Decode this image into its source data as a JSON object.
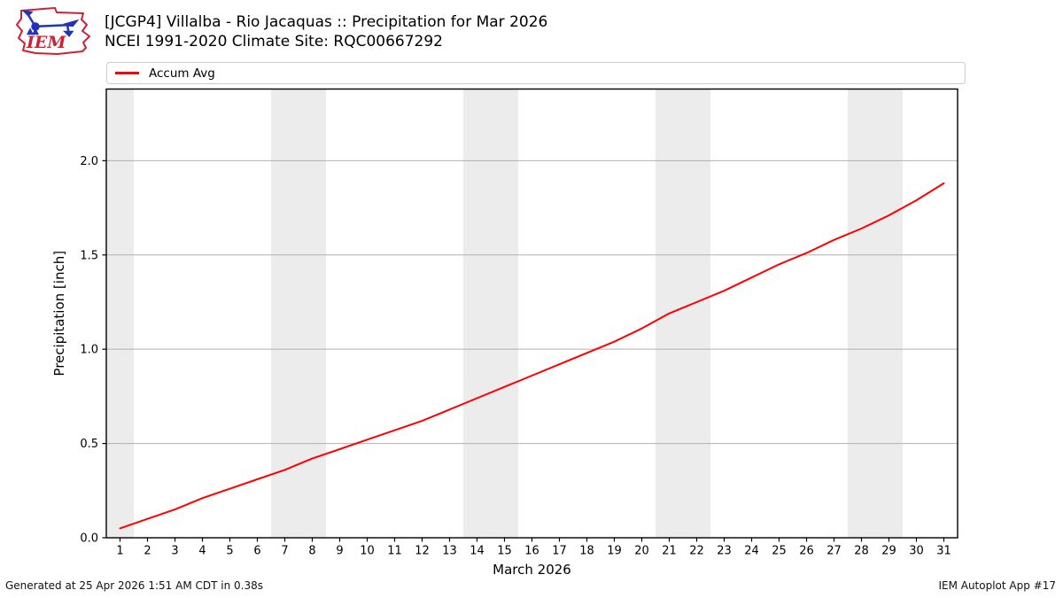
{
  "header": {
    "title_line1": "[JCGP4] Villalba - Rio Jacaquas :: Precipitation for Mar 2026",
    "title_line2": "NCEI 1991-2020 Climate Site: RQC00667292",
    "logo_text": "IEM"
  },
  "legend": {
    "items": [
      {
        "label": "Accum Avg",
        "color": "#ff0000"
      }
    ]
  },
  "footer": {
    "left": "Generated at 25 Apr 2026 1:51 AM CDT in 0.38s",
    "right": "IEM Autoplot App #17"
  },
  "colors": {
    "line": "#ff0000",
    "weekend_band": "#ececec",
    "grid": "#b0b0b0",
    "axis": "#000000",
    "logo_red": "#cc2233",
    "logo_blue": "#2233bb"
  },
  "chart_data": {
    "type": "line",
    "title": "[JCGP4] Villalba - Rio Jacaquas :: Precipitation for Mar 2026",
    "subtitle": "NCEI 1991-2020 Climate Site: RQC00667292",
    "xlabel": "March 2026",
    "ylabel": "Precipitation [inch]",
    "xlim": [
      0.5,
      31.5
    ],
    "ylim": [
      0,
      2.38
    ],
    "grid": "horizontal",
    "legend_position": "top",
    "x_ticks": [
      1,
      2,
      3,
      4,
      5,
      6,
      7,
      8,
      9,
      10,
      11,
      12,
      13,
      14,
      15,
      16,
      17,
      18,
      19,
      20,
      21,
      22,
      23,
      24,
      25,
      26,
      27,
      28,
      29,
      30,
      31
    ],
    "y_ticks": [
      "0.0",
      "0.5",
      "1.0",
      "1.5",
      "2.0"
    ],
    "y_tick_values": [
      0.0,
      0.5,
      1.0,
      1.5,
      2.0
    ],
    "weekend_bands": [
      [
        0.5,
        1.5
      ],
      [
        6.5,
        8.5
      ],
      [
        13.5,
        15.5
      ],
      [
        20.5,
        22.5
      ],
      [
        27.5,
        29.5
      ]
    ],
    "series": [
      {
        "name": "Accum Avg",
        "color": "#ff0000",
        "x": [
          1,
          2,
          3,
          4,
          5,
          6,
          7,
          8,
          9,
          10,
          11,
          12,
          13,
          14,
          15,
          16,
          17,
          18,
          19,
          20,
          21,
          22,
          23,
          24,
          25,
          26,
          27,
          28,
          29,
          30,
          31
        ],
        "values": [
          0.05,
          0.1,
          0.15,
          0.21,
          0.26,
          0.31,
          0.36,
          0.42,
          0.47,
          0.52,
          0.57,
          0.62,
          0.68,
          0.74,
          0.8,
          0.86,
          0.92,
          0.98,
          1.04,
          1.11,
          1.19,
          1.25,
          1.31,
          1.38,
          1.45,
          1.51,
          1.58,
          1.64,
          1.71,
          1.79,
          1.88
        ]
      }
    ]
  }
}
